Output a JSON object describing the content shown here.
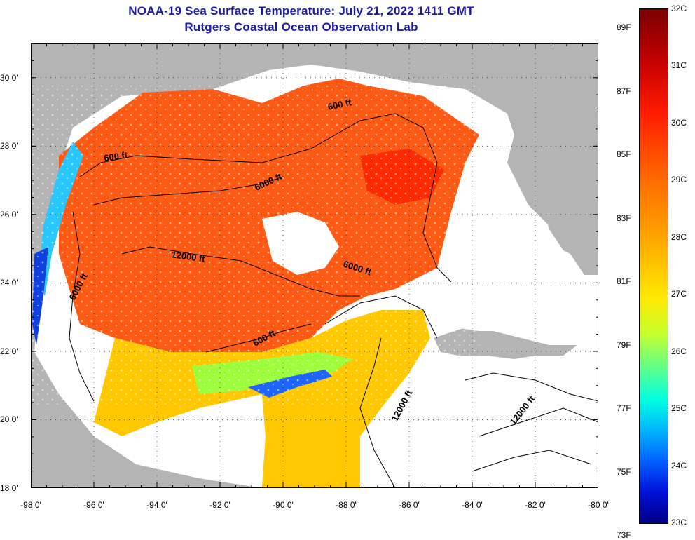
{
  "title_line1": "NOAA-19 Sea Surface Temperature:  July 21, 2022 1411 GMT",
  "title_line2": "Rutgers Coastal Ocean Observation Lab",
  "lat_labels": [
    "30 0'",
    "28 0'",
    "26 0'",
    "24 0'",
    "22 0'",
    "20 0'",
    "18 0'"
  ],
  "lat_values": [
    30,
    28,
    26,
    24,
    22,
    20,
    18
  ],
  "lon_labels": [
    "-98 0'",
    "-96 0'",
    "-94 0'",
    "-92 0'",
    "-90 0'",
    "-88 0'",
    "-86 0'",
    "-84 0'",
    "-82 0'",
    "-80 0'"
  ],
  "lon_values": [
    -98,
    -96,
    -94,
    -92,
    -90,
    -88,
    -86,
    -84,
    -82,
    -80
  ],
  "map_extent": {
    "lon_min": -98,
    "lon_max": -80,
    "lat_min": 18,
    "lat_max": 31
  },
  "contour_labels": [
    "600 ft",
    "600 ft",
    "6000 ft",
    "12000 ft",
    "6000 ft",
    "6000 ft",
    "600 ft",
    "12000 ft",
    "12000 ft"
  ],
  "colorbar": {
    "fahrenheit_labels": [
      "89F",
      "87F",
      "85F",
      "83F",
      "81F",
      "79F",
      "77F",
      "75F",
      "73F"
    ],
    "fahrenheit_values": [
      89,
      87,
      85,
      83,
      81,
      79,
      77,
      75,
      73
    ],
    "celsius_labels": [
      "32C",
      "31C",
      "30C",
      "29C",
      "28C",
      "27C",
      "26C",
      "25C",
      "24C",
      "23C"
    ],
    "celsius_values": [
      32,
      31,
      30,
      29,
      28,
      27,
      26,
      25,
      24,
      23
    ]
  },
  "colors": {
    "land": "#b4b4b4",
    "no_data": "#ffffff",
    "title": "#1a1aa8",
    "warm": "#ff5a14",
    "cool": "#1e64ff"
  }
}
